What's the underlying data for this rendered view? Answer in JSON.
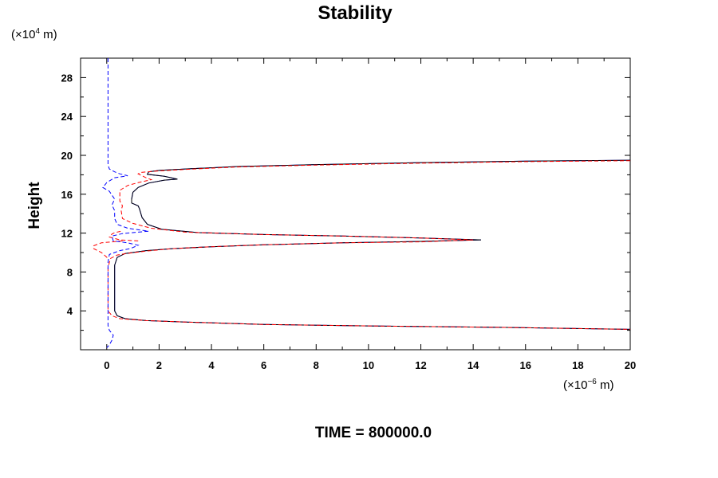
{
  "chart_data": {
    "type": "line",
    "title": "Stability",
    "ylabel": "Height",
    "xlabel": "",
    "y_unit": {
      "prefix": "(×10",
      "exp": "4",
      "suffix": " m)"
    },
    "x_unit": {
      "prefix": "(×10",
      "exp": "−6",
      "suffix": " m)"
    },
    "xlim": [
      -1,
      20
    ],
    "ylim": [
      0,
      30
    ],
    "xticks": [
      0,
      2,
      4,
      6,
      8,
      10,
      12,
      14,
      16,
      18,
      20
    ],
    "yticks": [
      4,
      8,
      12,
      16,
      20,
      24,
      28
    ],
    "xtick_labels": [
      "0",
      "2",
      "4",
      "6",
      "8",
      "10",
      "12",
      "14",
      "16",
      "18",
      "20"
    ],
    "ytick_labels": [
      "4",
      "8",
      "12",
      "16",
      "20",
      "24",
      "28"
    ],
    "grid": false,
    "footer": "TIME = 800000.0",
    "series": [
      {
        "color": "#0000ff",
        "dash": "solid",
        "points": [
          [
            20,
            19.5
          ],
          [
            16,
            19.4
          ],
          [
            12,
            19.25
          ],
          [
            8,
            19.05
          ],
          [
            5,
            18.85
          ],
          [
            3,
            18.6
          ],
          [
            2,
            18.45
          ],
          [
            1.6,
            18.3
          ],
          [
            1.55,
            18.05
          ],
          [
            2.2,
            17.85
          ],
          [
            2.7,
            17.55
          ],
          [
            2.2,
            17.45
          ],
          [
            1.6,
            17.15
          ],
          [
            1.2,
            16.7
          ],
          [
            1.0,
            16.2
          ],
          [
            0.95,
            15.5
          ],
          [
            0.95,
            15.1
          ],
          [
            1.2,
            14.8
          ],
          [
            1.25,
            14.5
          ],
          [
            1.35,
            13.6
          ],
          [
            1.55,
            12.9
          ],
          [
            2.1,
            12.4
          ],
          [
            3.5,
            12.05
          ],
          [
            6,
            11.85
          ],
          [
            9,
            11.7
          ],
          [
            12,
            11.5
          ],
          [
            14.3,
            11.3
          ],
          [
            12,
            11.15
          ],
          [
            9,
            11.0
          ],
          [
            6,
            10.8
          ],
          [
            4,
            10.6
          ],
          [
            2.5,
            10.4
          ],
          [
            1.5,
            10.2
          ],
          [
            0.7,
            9.9
          ],
          [
            0.4,
            9.5
          ],
          [
            0.3,
            8.7
          ],
          [
            0.3,
            4
          ],
          [
            0.4,
            3.5
          ],
          [
            0.7,
            3.2
          ],
          [
            1.5,
            3.0
          ],
          [
            3,
            2.85
          ],
          [
            6,
            2.6
          ],
          [
            10,
            2.45
          ],
          [
            15,
            2.3
          ],
          [
            20,
            2.1
          ]
        ]
      },
      {
        "color": "#000000",
        "dash": "solid",
        "points": [
          [
            20,
            19.5
          ],
          [
            16,
            19.4
          ],
          [
            12,
            19.25
          ],
          [
            8,
            19.05
          ],
          [
            5,
            18.85
          ],
          [
            3,
            18.6
          ],
          [
            2,
            18.45
          ],
          [
            1.6,
            18.3
          ],
          [
            1.55,
            18.05
          ],
          [
            2.2,
            17.85
          ],
          [
            2.7,
            17.55
          ],
          [
            2.2,
            17.45
          ],
          [
            1.6,
            17.15
          ],
          [
            1.2,
            16.7
          ],
          [
            1.0,
            16.2
          ],
          [
            0.95,
            15.5
          ],
          [
            0.95,
            15.1
          ],
          [
            1.2,
            14.8
          ],
          [
            1.25,
            14.5
          ],
          [
            1.35,
            13.6
          ],
          [
            1.55,
            12.9
          ],
          [
            2.1,
            12.4
          ],
          [
            3.5,
            12.05
          ],
          [
            6,
            11.85
          ],
          [
            9,
            11.7
          ],
          [
            12,
            11.5
          ],
          [
            14.3,
            11.3
          ],
          [
            12,
            11.15
          ],
          [
            9,
            11.0
          ],
          [
            6,
            10.8
          ],
          [
            4,
            10.6
          ],
          [
            2.5,
            10.4
          ],
          [
            1.5,
            10.2
          ],
          [
            0.7,
            9.9
          ],
          [
            0.4,
            9.5
          ],
          [
            0.3,
            8.7
          ],
          [
            0.3,
            4
          ],
          [
            0.4,
            3.5
          ],
          [
            0.7,
            3.2
          ],
          [
            1.5,
            3.0
          ],
          [
            3,
            2.85
          ],
          [
            6,
            2.6
          ],
          [
            10,
            2.45
          ],
          [
            15,
            2.3
          ],
          [
            20,
            2.1
          ]
        ]
      },
      {
        "color": "#ff0000",
        "dash": "dashed",
        "points": [
          [
            20,
            19.45
          ],
          [
            16,
            19.35
          ],
          [
            12,
            19.2
          ],
          [
            8,
            19.0
          ],
          [
            5,
            18.8
          ],
          [
            3,
            18.55
          ],
          [
            2,
            18.4
          ],
          [
            1.3,
            18.25
          ],
          [
            1.2,
            18.1
          ],
          [
            1.5,
            17.7
          ],
          [
            1.7,
            17.5
          ],
          [
            1.2,
            17.2
          ],
          [
            0.8,
            16.9
          ],
          [
            0.5,
            16.4
          ],
          [
            0.5,
            15.3
          ],
          [
            0.6,
            14.8
          ],
          [
            0.55,
            14.3
          ],
          [
            0.6,
            13.5
          ],
          [
            1.0,
            13.0
          ],
          [
            1.7,
            12.5
          ],
          [
            3.0,
            12.1
          ],
          [
            6,
            11.85
          ],
          [
            9,
            11.7
          ],
          [
            12,
            11.5
          ],
          [
            14,
            11.3
          ],
          [
            12,
            11.1
          ],
          [
            9,
            11.0
          ],
          [
            6,
            10.8
          ],
          [
            4,
            10.6
          ],
          [
            2.5,
            10.4
          ],
          [
            1.5,
            10.15
          ],
          [
            0.9,
            9.95
          ],
          [
            0.4,
            9.75
          ],
          [
            0.15,
            9.4
          ],
          [
            0.05,
            8.5
          ],
          [
            0.05,
            4
          ],
          [
            0.2,
            3.5
          ],
          [
            0.5,
            3.2
          ],
          [
            1.5,
            3.0
          ],
          [
            3,
            2.85
          ],
          [
            6,
            2.6
          ],
          [
            10,
            2.45
          ],
          [
            15,
            2.3
          ],
          [
            20,
            2.1
          ]
        ]
      },
      {
        "color": "#ff0000",
        "dash": "dashed",
        "points": [
          [
            1.2,
            11.2
          ],
          [
            0.5,
            11.3
          ],
          [
            0.1,
            11.6
          ],
          [
            0.2,
            11.9
          ],
          [
            0.3,
            12.05
          ],
          [
            0.55,
            12.2
          ]
        ]
      },
      {
        "color": "#ff0000",
        "dash": "dashed",
        "points": [
          [
            0.6,
            11.2
          ],
          [
            0.2,
            11.1
          ],
          [
            -0.2,
            11.0
          ],
          [
            -0.5,
            10.7
          ],
          [
            -0.5,
            10.4
          ],
          [
            -0.2,
            10.0
          ],
          [
            0.05,
            9.4
          ]
        ]
      },
      {
        "color": "#0000ff",
        "dash": "dashed",
        "points": [
          [
            0.05,
            30
          ],
          [
            0.05,
            19.0
          ],
          [
            0.1,
            18.6
          ],
          [
            0.3,
            18.3
          ],
          [
            0.5,
            18.1
          ],
          [
            0.8,
            17.9
          ],
          [
            0.3,
            17.7
          ],
          [
            0.0,
            17.2
          ],
          [
            -0.15,
            16.7
          ],
          [
            0.1,
            16.3
          ],
          [
            0.3,
            15.5
          ],
          [
            0.2,
            14.9
          ],
          [
            0.3,
            14.3
          ],
          [
            0.3,
            13.5
          ],
          [
            0.4,
            12.9
          ],
          [
            0.8,
            12.5
          ],
          [
            1.6,
            12.2
          ],
          [
            0.6,
            11.95
          ],
          [
            0.2,
            11.7
          ],
          [
            0.25,
            11.2
          ],
          [
            0.8,
            11.0
          ],
          [
            1.2,
            10.75
          ],
          [
            0.9,
            10.4
          ],
          [
            0.5,
            10.2
          ],
          [
            0.1,
            9.8
          ],
          [
            0.05,
            9.0
          ],
          [
            0.05,
            2.5
          ],
          [
            0.1,
            2.0
          ],
          [
            0.25,
            1.5
          ],
          [
            0.2,
            1.0
          ],
          [
            0.1,
            0.5
          ],
          [
            0.0,
            0.2
          ]
        ]
      }
    ]
  }
}
